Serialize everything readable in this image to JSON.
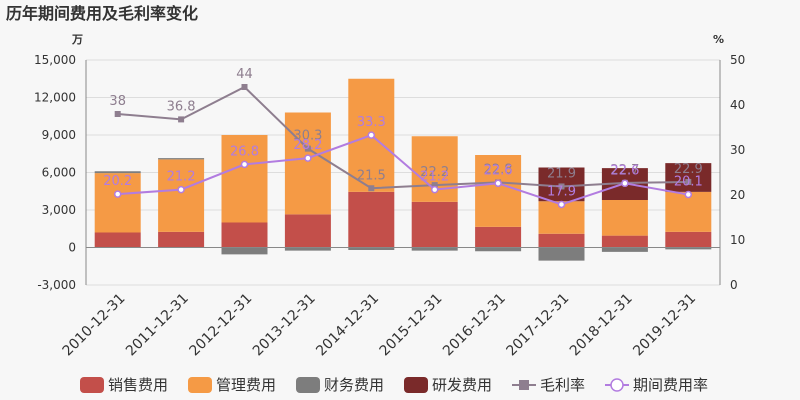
{
  "title": "历年期间费用及毛利率变化",
  "colors": {
    "sales": "#c34f4a",
    "admin": "#f59a45",
    "finance": "#7d7d7d",
    "rd": "#7a2a2a",
    "gross": "#8e7e8f",
    "period": "#b27ce0",
    "grid": "#dddddd",
    "axis": "#888888"
  },
  "chart_data": {
    "type": "bar",
    "title": "历年期间费用及毛利率变化",
    "stacked": true,
    "categories": [
      "2010-12-31",
      "2011-12-31",
      "2012-12-31",
      "2013-12-31",
      "2014-12-31",
      "2015-12-31",
      "2016-12-31",
      "2017-12-31",
      "2018-12-31",
      "2019-12-31"
    ],
    "y_left": {
      "unit": "万",
      "ylim": [
        -3000,
        15000
      ],
      "ticks": [
        "-3,000",
        "0",
        "3,000",
        "6,000",
        "9,000",
        "12,000",
        "15,000"
      ],
      "tick_values": [
        -3000,
        0,
        3000,
        6000,
        9000,
        12000,
        15000
      ]
    },
    "y_right": {
      "unit": "%",
      "ylim": [
        0,
        50
      ],
      "ticks": [
        "0",
        "10",
        "20",
        "30",
        "40",
        "50"
      ],
      "tick_values": [
        0,
        10,
        20,
        30,
        40,
        50
      ]
    },
    "series": [
      {
        "name": "销售费用",
        "key": "sales",
        "kind": "bar",
        "values": [
          1200,
          1250,
          2000,
          2650,
          4450,
          3650,
          1650,
          1100,
          950,
          1250
        ]
      },
      {
        "name": "管理费用",
        "key": "admin",
        "kind": "bar",
        "values": [
          4750,
          5800,
          7000,
          8150,
          9050,
          5250,
          5750,
          2600,
          2850,
          3200
        ]
      },
      {
        "name": "财务费用",
        "key": "finance",
        "kind": "bar",
        "values": [
          150,
          100,
          -550,
          -250,
          -200,
          -250,
          -300,
          -1050,
          -350,
          -150
        ]
      },
      {
        "name": "研发费用",
        "key": "rd",
        "kind": "bar",
        "values": [
          0,
          0,
          0,
          0,
          0,
          0,
          0,
          2700,
          2550,
          2300
        ]
      },
      {
        "name": "毛利率",
        "key": "gross",
        "kind": "line",
        "axis": "right",
        "values": [
          38,
          36.8,
          44,
          30.3,
          21.5,
          22.2,
          22.8,
          21.9,
          22.7,
          22.9
        ],
        "labels": [
          "38",
          "36.8",
          "44",
          "30.3",
          "21.5",
          "22.2",
          "22.8",
          "21.9",
          "22.7",
          "22.9"
        ]
      },
      {
        "name": "期间费用率",
        "key": "period",
        "kind": "line",
        "axis": "right",
        "values": [
          20.2,
          21.2,
          26.8,
          28.2,
          33.3,
          21.2,
          22.6,
          17.9,
          22.6,
          20.1
        ],
        "labels": [
          "20.2",
          "21.2",
          "26.8",
          "28.2",
          "33.3",
          "21.2",
          "22.6",
          "17.9",
          "22.6",
          "20.1"
        ]
      }
    ],
    "grid": true,
    "legend": "bottom"
  }
}
